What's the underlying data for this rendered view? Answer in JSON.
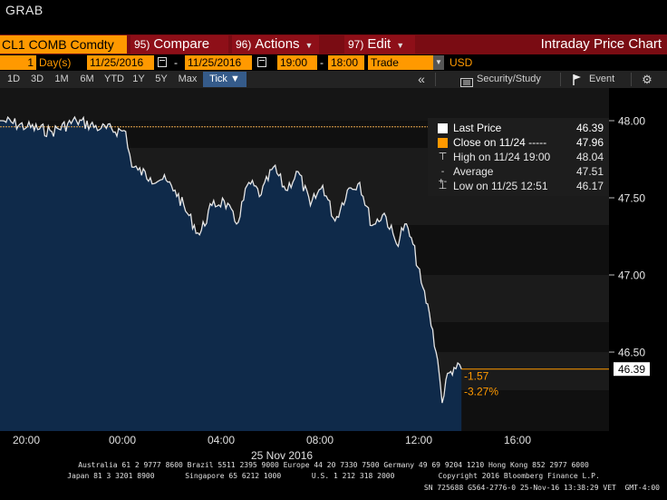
{
  "app_title": "GRAB",
  "menu": {
    "ticker": "CL1 COMB Comdty",
    "compare_num": "95)",
    "compare_label": "Compare",
    "actions_num": "96)",
    "actions_label": "Actions",
    "edit_num": "97)",
    "edit_label": "Edit",
    "chart_title": "Intraday Price Chart"
  },
  "params": {
    "period_value": "1",
    "period_unit": "Day(s)",
    "start_date": "11/25/2016",
    "dash": "-",
    "end_date": "11/25/2016",
    "start_time": "19:00",
    "end_time": "18:00",
    "event_type": "Trade",
    "currency": "USD"
  },
  "toolbar": {
    "ranges": [
      "1D",
      "3D",
      "1M",
      "6M",
      "YTD",
      "1Y",
      "5Y",
      "Max"
    ],
    "tick_label": "Tick ▼",
    "collapse": "«",
    "security_study": "Security/Study",
    "event": "Event"
  },
  "legend": {
    "last_price_label": "Last Price",
    "last_price_value": "46.39",
    "close_label": "Close on 11/24 -----",
    "close_value": "47.96",
    "high_label": "High on 11/24 19:00",
    "high_value": "48.04",
    "average_label": "Average",
    "average_value": "47.51",
    "low_label": "Low on 11/25 12:51",
    "low_value": "46.17"
  },
  "annotations": {
    "change": "-1.57",
    "change_pct": "-3.27%",
    "last_tag": "46.39"
  },
  "xaxis": {
    "date_label": "25 Nov 2016"
  },
  "footer": {
    "line1": "Australia 61 2 9777 8600 Brazil 5511 2395 9000 Europe 44 20 7330 7500 Germany 49 69 9204 1210 Hong Kong 852 2977 6000",
    "line2": "Japan 81 3 3201 8900       Singapore 65 6212 1000       U.S. 1 212 318 2000          Copyright 2016 Bloomberg Finance L.P.",
    "line3": "SN 725688 G564-2776-0 25-Nov-16 13:38:29 VET  GMT-4:00"
  },
  "colors": {
    "accent_orange": "#ff9900",
    "menu_red": "#7a0c13",
    "area_fill": "#0f2a4a",
    "price_line": "#e6e6e6"
  },
  "chart_data": {
    "type": "line",
    "title": "",
    "xlabel": "",
    "ylabel": "",
    "x_tick_labels": [
      "20:00",
      "00:00",
      "04:00",
      "08:00",
      "12:00",
      "16:00"
    ],
    "y_tick_labels": [
      "48.00",
      "47.50",
      "47.00",
      "46.50"
    ],
    "ylim": [
      46.1,
      48.1
    ],
    "xlim": [
      "11/24 18:30",
      "11/25 18:00"
    ],
    "close_reference": 47.96,
    "series": [
      {
        "name": "Last Price",
        "x": [
          "11/24 19:00",
          "11/24 20:00",
          "11/24 21:00",
          "11/24 22:00",
          "11/24 23:00",
          "11/25 00:00",
          "11/25 00:15",
          "11/25 00:30",
          "11/25 01:00",
          "11/25 01:30",
          "11/25 02:00",
          "11/25 02:30",
          "11/25 03:00",
          "11/25 03:30",
          "11/25 04:00",
          "11/25 04:30",
          "11/25 05:00",
          "11/25 05:30",
          "11/25 06:00",
          "11/25 06:30",
          "11/25 07:00",
          "11/25 07:30",
          "11/25 08:00",
          "11/25 08:30",
          "11/25 09:00",
          "11/25 09:30",
          "11/25 10:00",
          "11/25 10:30",
          "11/25 11:00",
          "11/25 11:20",
          "11/25 11:40",
          "11/25 12:00",
          "11/25 12:20",
          "11/25 12:40",
          "11/25 12:51",
          "11/25 13:00",
          "11/25 13:20",
          "11/25 13:38"
        ],
        "y": [
          48.0,
          47.96,
          47.93,
          48.0,
          47.95,
          47.93,
          47.7,
          47.68,
          47.63,
          47.62,
          47.55,
          47.4,
          47.26,
          47.45,
          47.48,
          47.33,
          47.6,
          47.52,
          47.7,
          47.55,
          47.67,
          47.45,
          47.58,
          47.35,
          47.55,
          47.6,
          47.32,
          47.4,
          47.2,
          47.33,
          47.2,
          46.95,
          46.75,
          46.45,
          46.17,
          46.32,
          46.4,
          46.39
        ]
      }
    ]
  }
}
